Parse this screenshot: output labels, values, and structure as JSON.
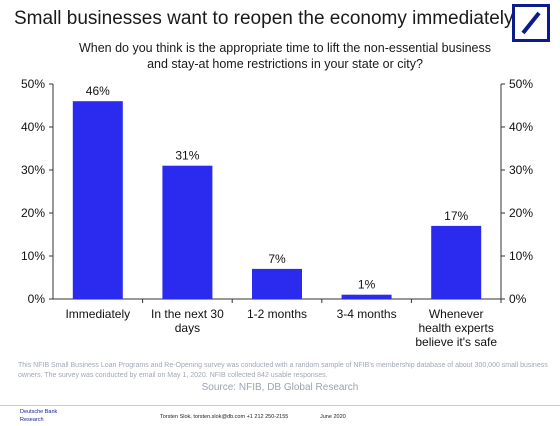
{
  "header": {
    "title": "Small businesses want to reopen the economy immediately",
    "logo_icon": "deutsche-bank-logo-icon"
  },
  "chart_data": {
    "type": "bar",
    "title": "When do you think is the appropriate time to lift the non-essential business and stay-at home restrictions in your state or city?",
    "categories": [
      [
        "Immediately"
      ],
      [
        "In the next 30",
        "days"
      ],
      [
        "1-2 months"
      ],
      [
        "3-4 months"
      ],
      [
        "Whenever",
        "health experts",
        "believe it's safe"
      ]
    ],
    "values": [
      46,
      31,
      7,
      1,
      17
    ],
    "data_labels": [
      "46%",
      "31%",
      "7%",
      "1%",
      "17%"
    ],
    "ylim": [
      0,
      50
    ],
    "yticks": [
      0,
      10,
      20,
      30,
      40,
      50
    ],
    "ytick_labels": [
      "0%",
      "10%",
      "20%",
      "30%",
      "40%",
      "50%"
    ],
    "secondary_axis": true,
    "grid": false,
    "bar_color": "#2b2bf0"
  },
  "notes": {
    "footnote": "This NFIB Small Business Loan Programs and Re-Opening survey was conducted with a random sample of NFIB's membership database of about 300,000 small business owners. The survey was conducted by email on May 1, 2020. NFIB collected 842 usable responses.",
    "source": "Source: NFIB, DB Global Research"
  },
  "footer": {
    "brand": "Deutsche Bank Research",
    "contact": "Torsten Slok, torsten.slok@db.com +1 212 250-2155",
    "date": "June 2020"
  }
}
